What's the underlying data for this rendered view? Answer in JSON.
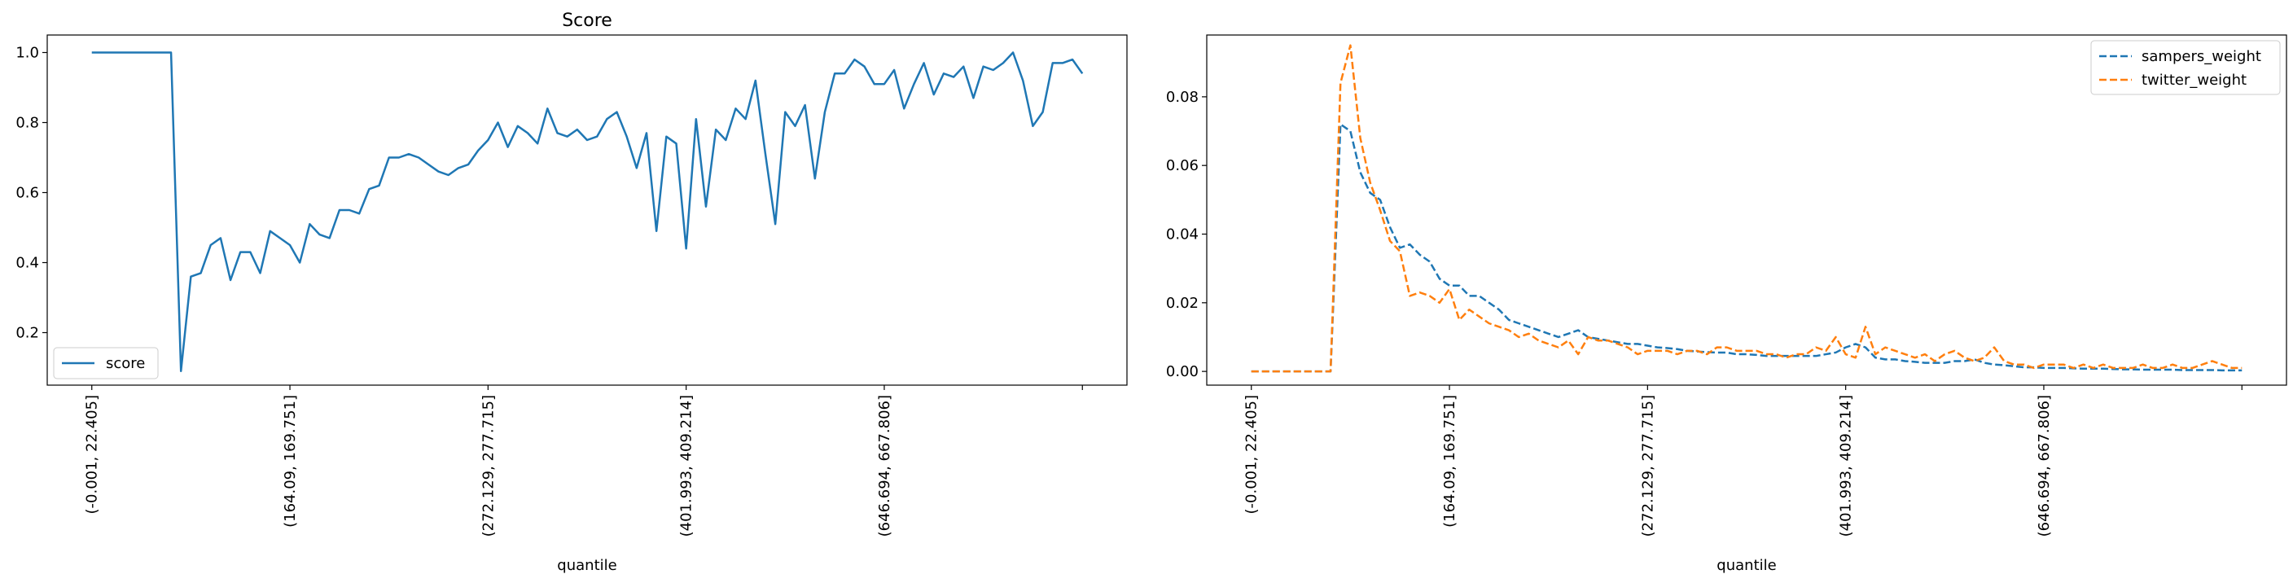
{
  "chart_data": [
    {
      "type": "line",
      "title": "Score",
      "xlabel": "quantile",
      "ylabel": "",
      "ylim": [
        0.05,
        1.05
      ],
      "yticks": [
        0.2,
        0.4,
        0.6,
        0.8,
        1.0
      ],
      "ytick_labels": [
        "0.2",
        "0.4",
        "0.6",
        "0.8",
        "1.0"
      ],
      "xlim": [
        -4.5,
        104.5
      ],
      "xticks": [
        0,
        20,
        40,
        60,
        80,
        100
      ],
      "xtick_labels": [
        "(-0.001, 22.405]",
        "(164.09, 169.751]",
        "(272.129, 277.715]",
        "(401.993, 409.214]",
        "(646.694, 667.806]",
        ""
      ],
      "legend": "lower-left",
      "grid": false,
      "series": [
        {
          "name": "score",
          "color": "#1f77b4",
          "style": "solid",
          "values": [
            1.0,
            1.0,
            1.0,
            1.0,
            1.0,
            1.0,
            1.0,
            1.0,
            1.0,
            0.09,
            0.36,
            0.37,
            0.45,
            0.47,
            0.35,
            0.43,
            0.43,
            0.37,
            0.49,
            0.47,
            0.45,
            0.4,
            0.51,
            0.48,
            0.47,
            0.55,
            0.55,
            0.54,
            0.61,
            0.62,
            0.7,
            0.7,
            0.71,
            0.7,
            0.68,
            0.66,
            0.65,
            0.67,
            0.68,
            0.72,
            0.75,
            0.8,
            0.73,
            0.79,
            0.77,
            0.74,
            0.84,
            0.77,
            0.76,
            0.78,
            0.75,
            0.76,
            0.81,
            0.83,
            0.76,
            0.67,
            0.77,
            0.49,
            0.76,
            0.74,
            0.44,
            0.81,
            0.56,
            0.78,
            0.75,
            0.84,
            0.81,
            0.92,
            0.71,
            0.51,
            0.83,
            0.79,
            0.85,
            0.64,
            0.83,
            0.94,
            0.94,
            0.98,
            0.96,
            0.91,
            0.91,
            0.95,
            0.84,
            0.91,
            0.97,
            0.88,
            0.94,
            0.93,
            0.96,
            0.87,
            0.96,
            0.95,
            0.97,
            1.0,
            0.92,
            0.79,
            0.83,
            0.97,
            0.97,
            0.98,
            0.94
          ]
        }
      ]
    },
    {
      "type": "line",
      "title": "",
      "xlabel": "quantile",
      "ylabel": "",
      "ylim": [
        -0.004,
        0.098
      ],
      "yticks": [
        0.0,
        0.02,
        0.04,
        0.06,
        0.08
      ],
      "ytick_labels": [
        "0.00",
        "0.02",
        "0.04",
        "0.06",
        "0.08"
      ],
      "xlim": [
        -4.5,
        104.5
      ],
      "xticks": [
        0,
        20,
        40,
        60,
        80,
        100
      ],
      "xtick_labels": [
        "(-0.001, 22.405]",
        "(164.09, 169.751]",
        "(272.129, 277.715]",
        "(401.993, 409.214]",
        "(646.694, 667.806]",
        ""
      ],
      "legend": "top-right",
      "grid": false,
      "series": [
        {
          "name": "sampers_weight",
          "color": "#1f77b4",
          "style": "dashed",
          "values": [
            0,
            0,
            0,
            0,
            0,
            0,
            0,
            0,
            0,
            0.072,
            0.07,
            0.058,
            0.052,
            0.05,
            0.042,
            0.036,
            0.037,
            0.034,
            0.032,
            0.027,
            0.025,
            0.025,
            0.022,
            0.022,
            0.02,
            0.018,
            0.015,
            0.014,
            0.013,
            0.012,
            0.011,
            0.01,
            0.011,
            0.012,
            0.01,
            0.0095,
            0.009,
            0.0085,
            0.008,
            0.008,
            0.0075,
            0.007,
            0.0068,
            0.0065,
            0.006,
            0.0058,
            0.0056,
            0.0055,
            0.0055,
            0.005,
            0.005,
            0.0048,
            0.0045,
            0.0045,
            0.0045,
            0.0045,
            0.0045,
            0.0045,
            0.005,
            0.0055,
            0.007,
            0.008,
            0.007,
            0.004,
            0.0035,
            0.0035,
            0.003,
            0.0028,
            0.0025,
            0.0025,
            0.0025,
            0.003,
            0.003,
            0.0035,
            0.0025,
            0.002,
            0.0018,
            0.0015,
            0.0012,
            0.0012,
            0.001,
            0.001,
            0.001,
            0.0009,
            0.0008,
            0.0008,
            0.0008,
            0.0007,
            0.0006,
            0.0006,
            0.0005,
            0.0005,
            0.0005,
            0.0005,
            0.0004,
            0.0004,
            0.0004,
            0.0004,
            0.0003,
            0.0003,
            0.0003
          ]
        },
        {
          "name": "twitter_weight",
          "color": "#ff7f0e",
          "style": "dashed",
          "values": [
            0,
            0,
            0,
            0,
            0,
            0,
            0,
            0,
            0,
            0.084,
            0.095,
            0.068,
            0.055,
            0.047,
            0.038,
            0.035,
            0.022,
            0.023,
            0.022,
            0.02,
            0.024,
            0.015,
            0.018,
            0.016,
            0.014,
            0.013,
            0.012,
            0.01,
            0.011,
            0.009,
            0.008,
            0.007,
            0.009,
            0.005,
            0.01,
            0.009,
            0.009,
            0.008,
            0.007,
            0.005,
            0.006,
            0.006,
            0.006,
            0.005,
            0.006,
            0.006,
            0.005,
            0.007,
            0.007,
            0.006,
            0.006,
            0.006,
            0.005,
            0.005,
            0.004,
            0.005,
            0.005,
            0.007,
            0.006,
            0.01,
            0.005,
            0.004,
            0.013,
            0.005,
            0.007,
            0.006,
            0.005,
            0.004,
            0.005,
            0.003,
            0.005,
            0.006,
            0.004,
            0.003,
            0.004,
            0.007,
            0.003,
            0.002,
            0.002,
            0.001,
            0.002,
            0.002,
            0.002,
            0.001,
            0.002,
            0.001,
            0.002,
            0.001,
            0.001,
            0.001,
            0.002,
            0.001,
            0.001,
            0.002,
            0.001,
            0.001,
            0.002,
            0.003,
            0.002,
            0.001,
            0.001
          ]
        }
      ]
    }
  ]
}
